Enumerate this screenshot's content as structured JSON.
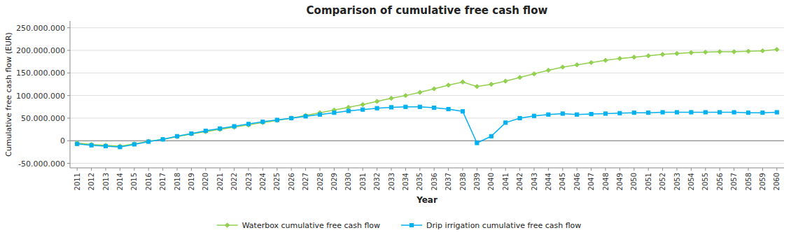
{
  "chart_data": {
    "type": "line",
    "title": "Comparison of cumulative free cash flow",
    "xlabel": "Year",
    "ylabel": "Cumulative free cash flow (EUR)",
    "x": [
      2011,
      2012,
      2013,
      2014,
      2015,
      2016,
      2017,
      2018,
      2019,
      2020,
      2021,
      2022,
      2023,
      2024,
      2025,
      2026,
      2027,
      2028,
      2029,
      2030,
      2031,
      2032,
      2033,
      2034,
      2035,
      2036,
      2037,
      2038,
      2039,
      2040,
      2041,
      2042,
      2043,
      2044,
      2045,
      2046,
      2047,
      2048,
      2049,
      2050,
      2051,
      2052,
      2053,
      2054,
      2055,
      2056,
      2057,
      2058,
      2059,
      2060
    ],
    "series": [
      {
        "name": "Waterbox cumulative free cash flow",
        "color": "#92d050",
        "marker": "diamond",
        "line_style": "solid",
        "values": [
          -5000000,
          -8000000,
          -10000000,
          -12000000,
          -7000000,
          -1000000,
          3000000,
          9000000,
          15000000,
          20000000,
          25000000,
          30000000,
          35000000,
          40000000,
          45000000,
          50000000,
          56000000,
          62000000,
          68000000,
          74000000,
          80000000,
          87000000,
          94000000,
          100000000,
          107000000,
          115000000,
          123000000,
          130000000,
          120000000,
          125000000,
          132000000,
          140000000,
          148000000,
          156000000,
          163000000,
          168000000,
          173000000,
          178000000,
          182000000,
          185000000,
          188000000,
          191000000,
          193000000,
          195000000,
          196000000,
          197000000,
          197000000,
          198000000,
          199000000,
          202000000
        ]
      },
      {
        "name": "Drip irrigation cumulative free cash flow",
        "color": "#00b0f0",
        "marker": "square",
        "line_style": "solid",
        "values": [
          -7000000,
          -10000000,
          -12000000,
          -14000000,
          -8000000,
          -2000000,
          3000000,
          10000000,
          16000000,
          22000000,
          27000000,
          32000000,
          37000000,
          42000000,
          46000000,
          50000000,
          54000000,
          58000000,
          62000000,
          66000000,
          69000000,
          72000000,
          74000000,
          75000000,
          75000000,
          73000000,
          70000000,
          65000000,
          -5000000,
          10000000,
          40000000,
          50000000,
          55000000,
          58000000,
          60000000,
          58000000,
          59000000,
          60000000,
          61000000,
          62000000,
          62000000,
          63000000,
          63000000,
          63000000,
          63000000,
          63000000,
          63000000,
          62000000,
          62000000,
          63000000
        ]
      }
    ],
    "xlim": [
      2010.5,
      2060.5
    ],
    "xticks": [
      2011,
      2012,
      2013,
      2014,
      2015,
      2016,
      2017,
      2018,
      2019,
      2020,
      2021,
      2022,
      2023,
      2024,
      2025,
      2026,
      2027,
      2028,
      2029,
      2030,
      2031,
      2032,
      2033,
      2034,
      2035,
      2036,
      2037,
      2038,
      2039,
      2040,
      2041,
      2042,
      2043,
      2044,
      2045,
      2046,
      2047,
      2048,
      2049,
      2050,
      2051,
      2052,
      2053,
      2054,
      2055,
      2056,
      2057,
      2058,
      2059,
      2060
    ],
    "ylim": [
      -60000000,
      265000000
    ],
    "yticks": [
      {
        "value": -50000000,
        "label": "-50.000.000"
      },
      0,
      {
        "value": 50000000,
        "label": "50.000.000"
      },
      {
        "value": 100000000,
        "label": "100.000.000"
      },
      {
        "value": 150000000,
        "label": "150.000.000"
      },
      {
        "value": 200000000,
        "label": "200.000.000"
      },
      {
        "value": 250000000,
        "label": "250.000.000"
      }
    ],
    "grid": "y",
    "legend": "bottom"
  }
}
